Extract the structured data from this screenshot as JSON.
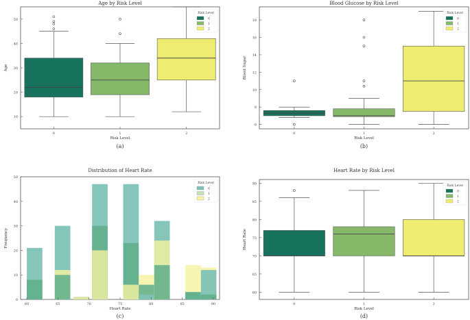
{
  "colors": {
    "risk0": "#17735e",
    "risk1": "#86b86a",
    "risk2": "#eeed72",
    "hist0": "#7fc2b6",
    "hist0b": "#5fae8a",
    "hist1": "#a9d89a",
    "hist1b": "#c4e3b2",
    "hist2": "#f6f2a0",
    "frame": "#555555"
  },
  "chart_data": [
    {
      "id": "a",
      "type": "box",
      "title": "Age by Risk Level",
      "xlabel": "Risk Level",
      "ylabel": "Age",
      "caption": "(a)",
      "categories": [
        "0",
        "1",
        "2"
      ],
      "ylim": [
        5,
        55
      ],
      "yticks": [
        10,
        20,
        30,
        40,
        50
      ],
      "legend": {
        "title": "Risk Level",
        "position": "top-right",
        "entries": [
          "0",
          "1",
          "2"
        ]
      },
      "boxes": [
        {
          "name": "0",
          "whisker_low": 10,
          "q1": 18,
          "median": 22,
          "q3": 34,
          "whisker_high": 45,
          "outliers": [
            46,
            48,
            49,
            51
          ]
        },
        {
          "name": "1",
          "whisker_low": 10,
          "q1": 19,
          "median": 25,
          "q3": 32,
          "whisker_high": 40,
          "outliers": [
            44,
            50
          ]
        },
        {
          "name": "2",
          "whisker_low": 12,
          "q1": 25,
          "median": 34,
          "q3": 42,
          "whisker_high": 55,
          "outliers": []
        }
      ]
    },
    {
      "id": "b",
      "type": "box",
      "title": "Blood Glucose by Risk Level",
      "xlabel": "Risk Level",
      "ylabel": "Blood Sugar",
      "caption": "(b)",
      "categories": [
        "0",
        "1",
        "2"
      ],
      "ylim": [
        5.5,
        19.5
      ],
      "yticks": [
        6,
        8,
        10,
        12,
        14,
        16,
        18
      ],
      "legend": {
        "title": "Risk Level",
        "position": "top-right",
        "entries": [
          "0",
          "1",
          "2"
        ]
      },
      "boxes": [
        {
          "name": "0",
          "whisker_low": 6.8,
          "q1": 7.0,
          "median": 7.3,
          "q3": 7.6,
          "whisker_high": 8.0,
          "outliers": [
            11,
            6
          ]
        },
        {
          "name": "1",
          "whisker_low": 6.0,
          "q1": 6.9,
          "median": 7.0,
          "q3": 7.8,
          "whisker_high": 9.0,
          "outliers": [
            10.4,
            11.0,
            15.0,
            16.0,
            18.0
          ]
        },
        {
          "name": "2",
          "whisker_low": 6.0,
          "q1": 7.5,
          "median": 11.0,
          "q3": 15.0,
          "whisker_high": 19.0,
          "outliers": []
        }
      ]
    },
    {
      "id": "c",
      "type": "bar",
      "title": "Distribution of Heart Rate",
      "xlabel": "Heart Rate",
      "ylabel": "Frequency",
      "caption": "(c)",
      "xlim": [
        59,
        91
      ],
      "xticks": [
        60,
        65,
        70,
        75,
        80,
        85,
        90
      ],
      "ylim": [
        0,
        50
      ],
      "yticks": [
        0,
        10,
        20,
        30,
        40,
        50
      ],
      "legend": {
        "title": "Risk Level",
        "position": "top-right",
        "entries": [
          "0",
          "1",
          "2"
        ]
      },
      "bins": [
        {
          "x0": 60,
          "x1": 62.5,
          "series": [
            21,
            8,
            0
          ]
        },
        {
          "x0": 64.5,
          "x1": 67,
          "series": [
            30,
            10,
            12
          ]
        },
        {
          "x0": 67.5,
          "x1": 70,
          "series": [
            1,
            1,
            1
          ]
        },
        {
          "x0": 70.5,
          "x1": 73,
          "series": [
            47,
            30,
            20
          ]
        },
        {
          "x0": 75.5,
          "x1": 78,
          "series": [
            47,
            23,
            6
          ]
        },
        {
          "x0": 78,
          "x1": 80.5,
          "series": [
            2,
            6,
            10
          ]
        },
        {
          "x0": 80.5,
          "x1": 83,
          "series": [
            32,
            14,
            24
          ]
        },
        {
          "x0": 85.5,
          "x1": 88,
          "series": [
            3,
            3,
            14
          ]
        },
        {
          "x0": 88,
          "x1": 90.5,
          "series": [
            12,
            2,
            13
          ]
        }
      ]
    },
    {
      "id": "d",
      "type": "box",
      "title": "Heart Rate by Risk Level",
      "xlabel": "Risk Level",
      "ylabel": "Heart Rate",
      "caption": "(d)",
      "categories": [
        "0",
        "1",
        "2"
      ],
      "ylim": [
        58,
        91
      ],
      "yticks": [
        60,
        65,
        70,
        75,
        80,
        85,
        90
      ],
      "legend": {
        "title": "Risk Level",
        "position": "top-right",
        "entries": [
          "0",
          "1",
          "2"
        ]
      },
      "boxes": [
        {
          "name": "0",
          "whisker_low": 60,
          "q1": 70,
          "median": 70,
          "q3": 77,
          "whisker_high": 86,
          "outliers": [
            88
          ]
        },
        {
          "name": "1",
          "whisker_low": 60,
          "q1": 70,
          "median": 76,
          "q3": 78,
          "whisker_high": 88,
          "outliers": []
        },
        {
          "name": "2",
          "whisker_low": 60,
          "q1": 70,
          "median": 70,
          "q3": 80,
          "whisker_high": 90,
          "outliers": []
        }
      ]
    }
  ]
}
